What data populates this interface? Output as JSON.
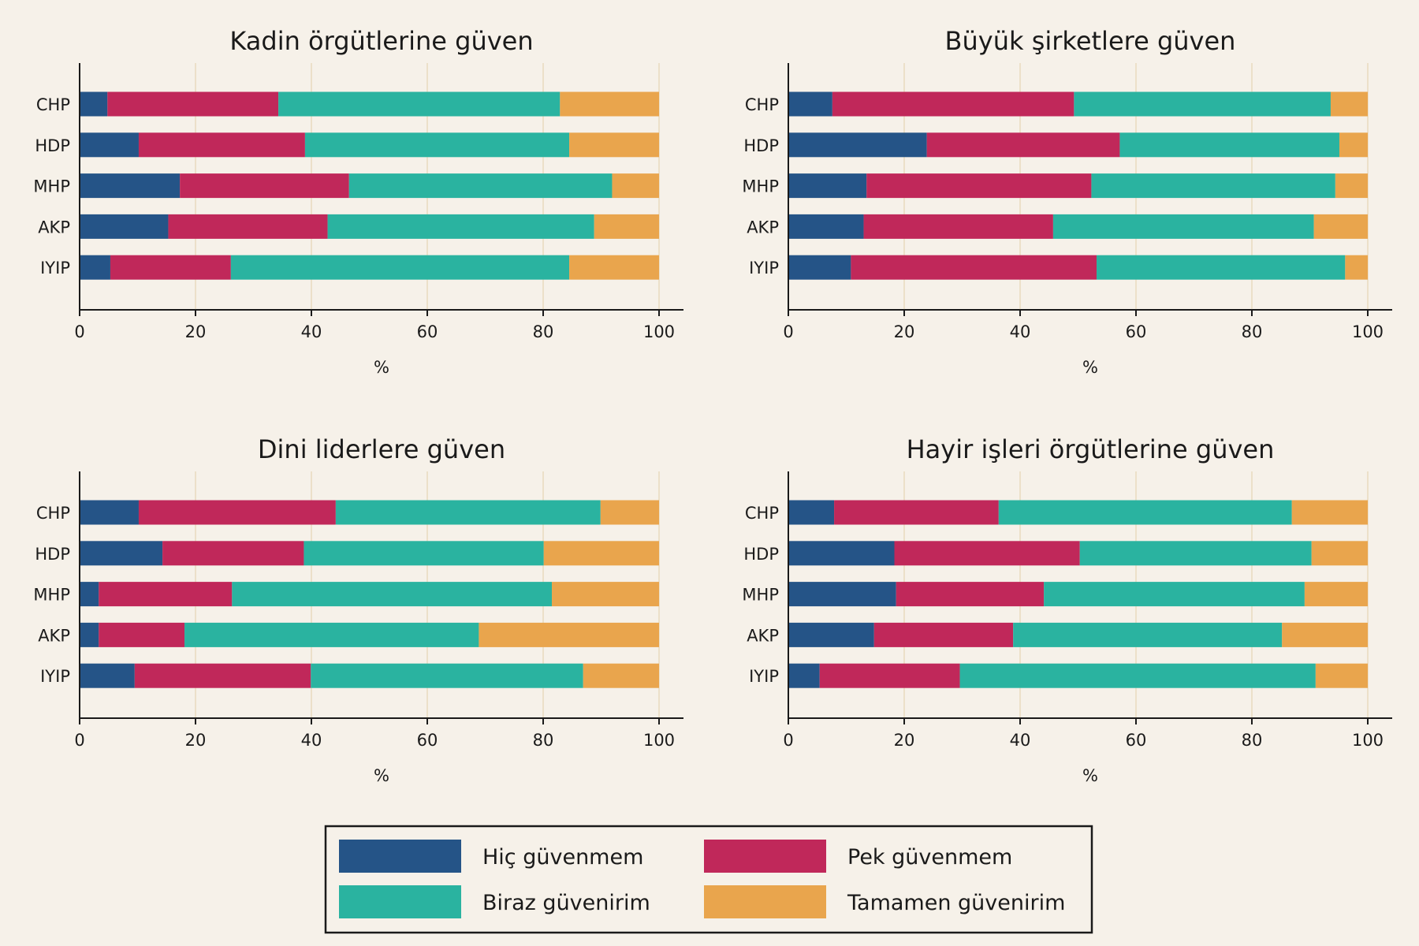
{
  "legend": {
    "items": [
      {
        "label": "Hiç güvenmem",
        "color": "#255487"
      },
      {
        "label": "Pek güvenmem",
        "color": "#c0285a"
      },
      {
        "label": "Biraz güvenirim",
        "color": "#2ab3a0"
      },
      {
        "label": "Tamamen güvenirim",
        "color": "#e9a54d"
      }
    ]
  },
  "chart_data": [
    {
      "type": "bar",
      "stacked": true,
      "orientation": "horizontal",
      "title": "Kadin örgütlerine güven",
      "xlabel": "%",
      "xlim": [
        0,
        100
      ],
      "xticks": [
        0,
        20,
        40,
        60,
        80,
        100
      ],
      "grid": true,
      "categories": [
        "CHP",
        "HDP",
        "MHP",
        "AKP",
        "IYIP"
      ],
      "series": [
        {
          "name": "Hiç güvenmem",
          "values": [
            4.8,
            10.2,
            17.3,
            15.3,
            5.3
          ]
        },
        {
          "name": "Pek güvenmem",
          "values": [
            29.5,
            28.7,
            29.2,
            27.5,
            20.8
          ]
        },
        {
          "name": "Biraz güvenirim",
          "values": [
            48.6,
            45.6,
            45.4,
            46.0,
            58.4
          ]
        },
        {
          "name": "Tamamen güvenirim",
          "values": [
            17.1,
            15.5,
            8.1,
            11.2,
            15.5
          ]
        }
      ]
    },
    {
      "type": "bar",
      "stacked": true,
      "orientation": "horizontal",
      "title": "Büyük şirketlere güven",
      "xlabel": "%",
      "xlim": [
        0,
        100
      ],
      "xticks": [
        0,
        20,
        40,
        60,
        80,
        100
      ],
      "grid": true,
      "categories": [
        "CHP",
        "HDP",
        "MHP",
        "AKP",
        "IYIP"
      ],
      "series": [
        {
          "name": "Hiç güvenmem",
          "values": [
            7.6,
            23.9,
            13.5,
            13.0,
            10.8
          ]
        },
        {
          "name": "Pek güvenmem",
          "values": [
            41.7,
            33.3,
            38.8,
            32.7,
            42.4
          ]
        },
        {
          "name": "Biraz güvenirim",
          "values": [
            44.3,
            37.9,
            42.1,
            45.0,
            42.9
          ]
        },
        {
          "name": "Tamamen güvenirim",
          "values": [
            6.4,
            4.9,
            5.6,
            9.3,
            3.9
          ]
        }
      ]
    },
    {
      "type": "bar",
      "stacked": true,
      "orientation": "horizontal",
      "title": "Dini liderlere güven",
      "xlabel": "%",
      "xlim": [
        0,
        100
      ],
      "xticks": [
        0,
        20,
        40,
        60,
        80,
        100
      ],
      "grid": true,
      "categories": [
        "CHP",
        "HDP",
        "MHP",
        "AKP",
        "IYIP"
      ],
      "series": [
        {
          "name": "Hiç güvenmem",
          "values": [
            10.2,
            14.3,
            3.3,
            3.3,
            9.5
          ]
        },
        {
          "name": "Pek güvenmem",
          "values": [
            34.0,
            24.4,
            23.0,
            14.8,
            30.4
          ]
        },
        {
          "name": "Biraz güvenirim",
          "values": [
            45.7,
            41.4,
            55.2,
            50.8,
            47.0
          ]
        },
        {
          "name": "Tamamen güvenirim",
          "values": [
            10.1,
            19.9,
            18.5,
            31.1,
            13.1
          ]
        }
      ]
    },
    {
      "type": "bar",
      "stacked": true,
      "orientation": "horizontal",
      "title": "Hayir işleri örgütlerine güven",
      "xlabel": "%",
      "xlim": [
        0,
        100
      ],
      "xticks": [
        0,
        20,
        40,
        60,
        80,
        100
      ],
      "grid": true,
      "categories": [
        "CHP",
        "HDP",
        "MHP",
        "AKP",
        "IYIP"
      ],
      "series": [
        {
          "name": "Hiç güvenmem",
          "values": [
            7.9,
            18.3,
            18.6,
            14.8,
            5.4
          ]
        },
        {
          "name": "Pek güvenmem",
          "values": [
            28.4,
            32.0,
            25.5,
            24.0,
            24.2
          ]
        },
        {
          "name": "Biraz güvenirim",
          "values": [
            50.6,
            40.0,
            45.0,
            46.4,
            61.4
          ]
        },
        {
          "name": "Tamamen güvenirim",
          "values": [
            13.1,
            9.7,
            10.9,
            14.8,
            9.0
          ]
        }
      ]
    }
  ]
}
